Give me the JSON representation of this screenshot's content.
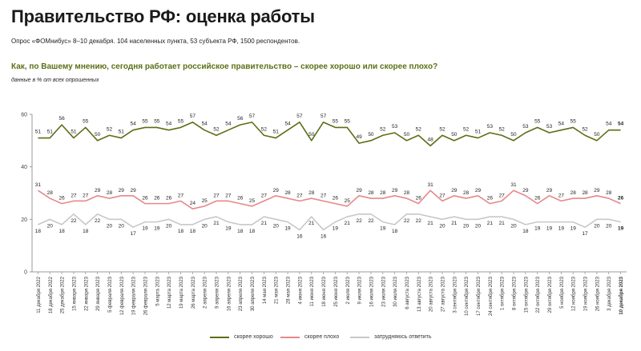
{
  "header": {
    "title": "Правительство РФ: оценка работы",
    "subtitle": "Опрос «ФОМнибус» 8–10 декабря. 104 населенных пункта, 53 субъекта РФ, 1500 респондентов.",
    "question": "Как, по Вашему мнению, сегодня работает российское правительство – скорее хорошо или скорее плохо?",
    "note": "данные в % от всех опрошенных"
  },
  "colors": {
    "good": "#5b6f14",
    "bad": "#e8888c",
    "unsure": "#c8c8c8",
    "axis": "#999999"
  },
  "chart_data": {
    "type": "line",
    "ylim": [
      0,
      60
    ],
    "yticks": [
      "0",
      "20",
      "40",
      "60"
    ],
    "categories": [
      "11 декабря 2022",
      "18 декабря 2022",
      "25 декабря 2022",
      "15 января 2023",
      "22 января 2023",
      "29 января 2023",
      "5 февраля 2023",
      "12 февраля 2023",
      "19 февраля 2023",
      "26 февраля 2023",
      "5 марта 2023",
      "12 марта 2023",
      "19 марта 2023",
      "26 марта 2023",
      "2 апреля 2023",
      "9 апреля 2023",
      "16 апреля 2023",
      "23 апреля 2023",
      "30 апреля 2023",
      "14 мая 2023",
      "21 мая 2023",
      "28 мая 2023",
      "4 июня 2023",
      "11 июня 2023",
      "18 июня 2023",
      "25 июня 2023",
      "2 июля 2023",
      "9 июля 2023",
      "16 июля 2023",
      "23 июля 2023",
      "30 июля 2023",
      "6 августа 2023",
      "13 августа 2023",
      "20 августа 2023",
      "27 августа 2023",
      "3 сентября 2023",
      "10 сентября 2023",
      "17 сентября 2023",
      "24 сентября 2023",
      "1 октября 2023",
      "8 октября 2023",
      "15 октября 2023",
      "22 октября 2023",
      "29 октября 2023",
      "5 ноября 2023",
      "12 ноября 2023",
      "19 ноября 2023",
      "26 ноября 2023",
      "3 декабря 2023",
      "10 декабря 2023"
    ],
    "series": [
      {
        "name": "скорее хорошо",
        "key": "good",
        "values": [
          51,
          51,
          56,
          51,
          55,
          50,
          52,
          51,
          54,
          55,
          55,
          54,
          55,
          57,
          54,
          52,
          54,
          56,
          57,
          52,
          51,
          54,
          57,
          50,
          57,
          55,
          55,
          49,
          50,
          52,
          53,
          50,
          52,
          48,
          52,
          50,
          52,
          51,
          53,
          52,
          50,
          53,
          55,
          53,
          54,
          55,
          52,
          50,
          54,
          54
        ]
      },
      {
        "name": "скорее плохо",
        "key": "bad",
        "values": [
          31,
          28,
          26,
          27,
          27,
          29,
          28,
          29,
          29,
          26,
          26,
          26,
          27,
          24,
          25,
          27,
          27,
          26,
          25,
          27,
          29,
          28,
          27,
          28,
          27,
          26,
          25,
          29,
          28,
          28,
          29,
          28,
          26,
          31,
          27,
          29,
          28,
          29,
          26,
          27,
          31,
          29,
          26,
          29,
          27,
          28,
          28,
          29,
          28,
          26
        ]
      },
      {
        "name": "затрудняюсь ответить",
        "key": "unsure",
        "values": [
          18,
          20,
          18,
          22,
          18,
          22,
          20,
          20,
          17,
          19,
          19,
          20,
          18,
          18,
          20,
          21,
          19,
          18,
          18,
          21,
          20,
          19,
          16,
          21,
          16,
          19,
          21,
          22,
          22,
          19,
          18,
          22,
          22,
          21,
          20,
          21,
          20,
          20,
          21,
          21,
          20,
          18,
          19,
          19,
          19,
          19,
          17,
          20,
          20,
          19
        ]
      }
    ]
  }
}
